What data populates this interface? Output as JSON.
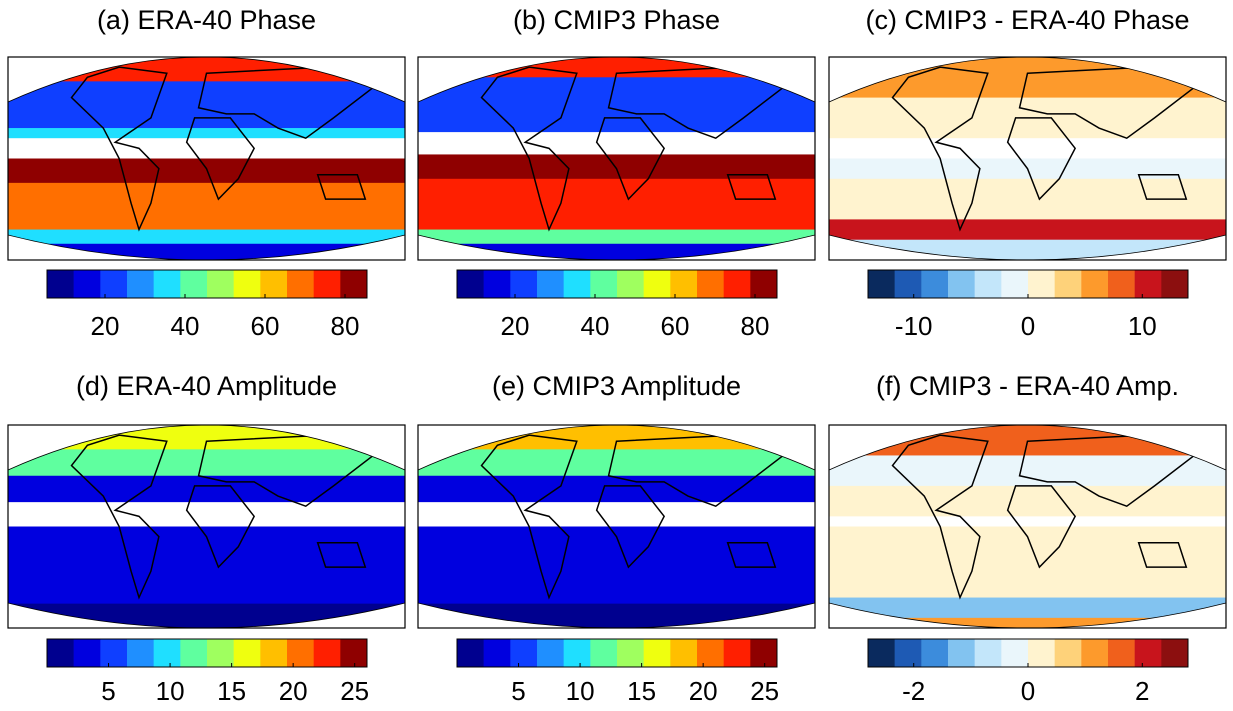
{
  "panels": [
    {
      "title": "(a) ERA-40 Phase",
      "colorbar": {
        "colors": [
          "#00008f",
          "#0000df",
          "#0f3fff",
          "#1f8fff",
          "#1fdfff",
          "#5fff9f",
          "#9fff5f",
          "#efff0f",
          "#ffbf00",
          "#ff6f00",
          "#ff1f00",
          "#8f0000"
        ],
        "lim": [
          5.5,
          85.5
        ],
        "ticks": [
          20,
          40,
          60,
          80
        ]
      }
    },
    {
      "title": "(b) CMIP3 Phase",
      "colorbar": {
        "colors": [
          "#00008f",
          "#0000df",
          "#0f3fff",
          "#1f8fff",
          "#1fdfff",
          "#5fff9f",
          "#9fff5f",
          "#efff0f",
          "#ffbf00",
          "#ff6f00",
          "#ff1f00",
          "#8f0000"
        ],
        "lim": [
          5.5,
          85.5
        ],
        "ticks": [
          20,
          40,
          60,
          80
        ]
      }
    },
    {
      "title": "(c) CMIP3 - ERA-40 Phase",
      "colorbar": {
        "colors": [
          "#0a2a5e",
          "#1e5ab4",
          "#3c8cdc",
          "#82c3f0",
          "#c3e6fa",
          "#eaf6fb",
          "#fff3cf",
          "#fed27a",
          "#fd9a2c",
          "#f0601c",
          "#c8141c",
          "#8c0f0f"
        ],
        "lim": [
          -14,
          14
        ],
        "ticks": [
          -10,
          0,
          10
        ]
      }
    },
    {
      "title": "(d) ERA-40 Amplitude",
      "colorbar": {
        "colors": [
          "#00008f",
          "#0000df",
          "#0f3fff",
          "#1f8fff",
          "#1fdfff",
          "#5fff9f",
          "#9fff5f",
          "#efff0f",
          "#ffbf00",
          "#ff6f00",
          "#ff1f00",
          "#8f0000"
        ],
        "lim": [
          0,
          26
        ],
        "ticks": [
          5,
          10,
          15,
          20,
          25
        ]
      }
    },
    {
      "title": "(e) CMIP3 Amplitude",
      "colorbar": {
        "colors": [
          "#00008f",
          "#0000df",
          "#0f3fff",
          "#1f8fff",
          "#1fdfff",
          "#5fff9f",
          "#9fff5f",
          "#efff0f",
          "#ffbf00",
          "#ff6f00",
          "#ff1f00",
          "#8f0000"
        ],
        "lim": [
          0,
          26
        ],
        "ticks": [
          5,
          10,
          15,
          20,
          25
        ]
      }
    },
    {
      "title": "(f) CMIP3 - ERA-40 Amp.",
      "colorbar": {
        "colors": [
          "#0a2a5e",
          "#1e5ab4",
          "#3c8cdc",
          "#82c3f0",
          "#c3e6fa",
          "#eaf6fb",
          "#fff3cf",
          "#fed27a",
          "#fd9a2c",
          "#f0601c",
          "#c8141c",
          "#8c0f0f"
        ],
        "lim": [
          -2.8,
          2.8
        ],
        "ticks": [
          -2,
          0,
          2
        ]
      }
    }
  ]
}
